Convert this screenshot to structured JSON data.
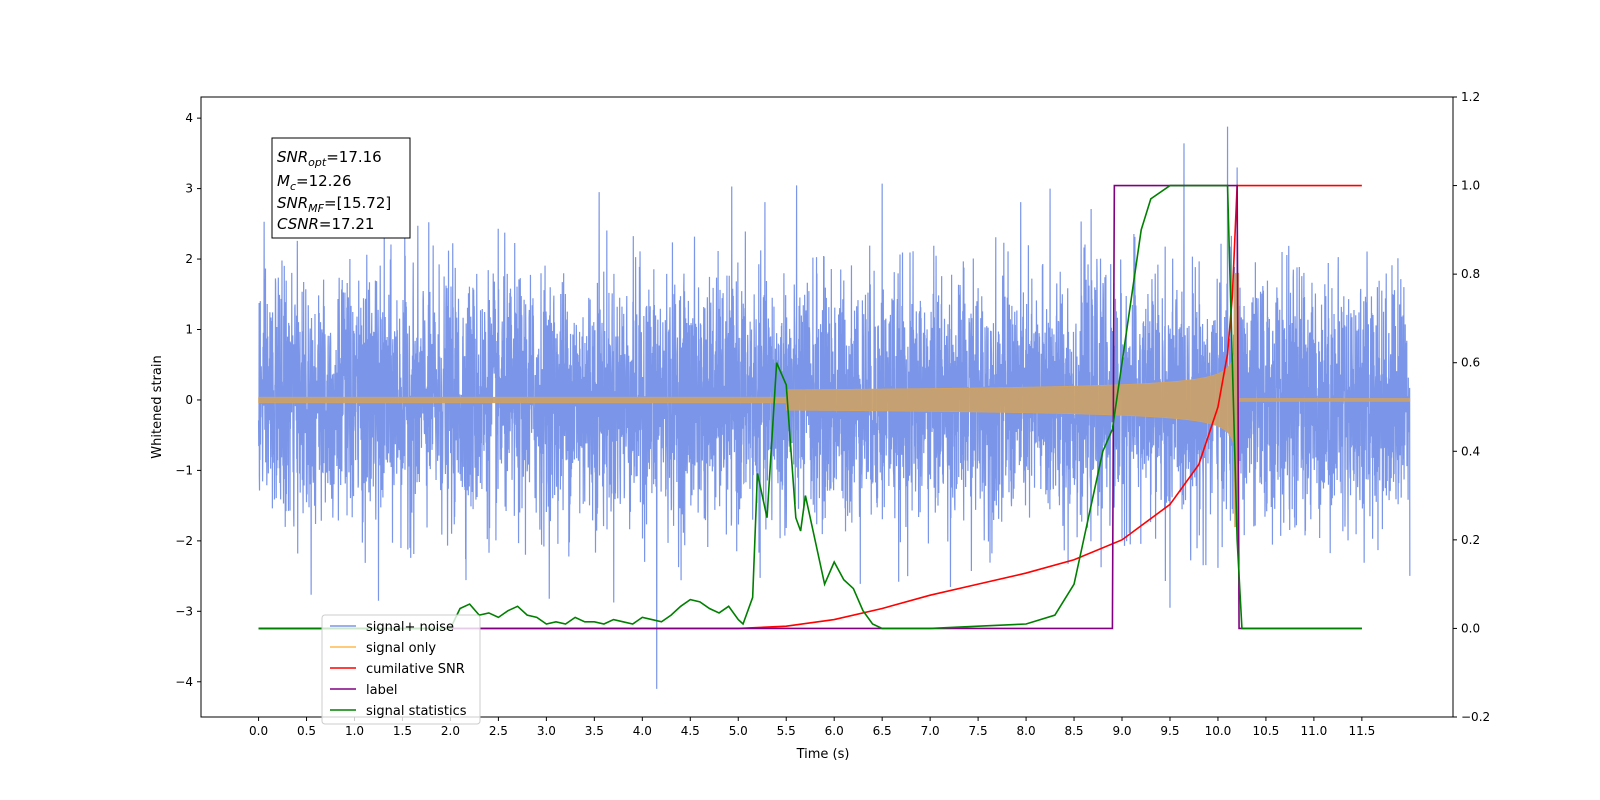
{
  "chart_data": {
    "type": "line",
    "xlabel": "Time (s)",
    "ylabel_left": "Whitened strain",
    "ylabel_right": "",
    "xlim": [
      -0.6,
      12.45
    ],
    "ylim_left": [
      -4.5,
      4.3
    ],
    "ylim_right": [
      -0.2,
      1.2
    ],
    "x_ticks": [
      0.0,
      0.5,
      1.0,
      1.5,
      2.0,
      2.5,
      3.0,
      3.5,
      4.0,
      4.5,
      5.0,
      5.5,
      6.0,
      6.5,
      7.0,
      7.5,
      8.0,
      8.5,
      9.0,
      9.5,
      10.0,
      10.5,
      11.0,
      11.5
    ],
    "x_tick_labels": [
      "0.0",
      "0.5",
      "1.0",
      "1.5",
      "2.0",
      "2.5",
      "3.0",
      "3.5",
      "4.0",
      "4.5",
      "5.0",
      "5.5",
      "6.0",
      "6.5",
      "7.0",
      "7.5",
      "8.0",
      "8.5",
      "9.0",
      "9.5",
      "10.0",
      "10.5",
      "11.0",
      "11.5"
    ],
    "y_left_ticks": [
      -4,
      -3,
      -2,
      -1,
      0,
      1,
      2,
      3,
      4
    ],
    "y_left_tick_labels": [
      "−4",
      "−3",
      "−2",
      "−1",
      "0",
      "1",
      "2",
      "3",
      "4"
    ],
    "y_right_ticks": [
      -0.2,
      0.0,
      0.2,
      0.4,
      0.6,
      0.8,
      1.0,
      1.2
    ],
    "y_right_tick_labels": [
      "−0.2",
      "0.0",
      "0.2",
      "0.4",
      "0.6",
      "0.8",
      "1.0",
      "1.2"
    ],
    "grid": false,
    "legend_position": "lower-left",
    "annotation": {
      "snr_opt": "=17.16",
      "mc": "=12.26",
      "snr_mf": "=[15.72]",
      "csnr": "=17.21"
    },
    "series": [
      {
        "name": "signal+ noise",
        "axis": "left",
        "color": "#7b96e8",
        "noise_sigma": 1.0,
        "x_range": [
          0.0,
          12.0
        ],
        "spikes": [
          [
            4.15,
            -4.1
          ],
          [
            10.1,
            3.88
          ],
          [
            10.2,
            3.3
          ],
          [
            1.25,
            -2.85
          ],
          [
            3.55,
            2.95
          ],
          [
            6.5,
            3.07
          ],
          [
            8.25,
            3.0
          ],
          [
            9.5,
            -2.95
          ]
        ]
      },
      {
        "name": "signal only",
        "axis": "left",
        "color": "#ffb84d",
        "envelope": {
          "t_merge": 10.2,
          "amp_at_merge": 1.1,
          "t_start": 5.5
        }
      },
      {
        "name": "cumilative SNR",
        "axis": "right",
        "color": "#ff0000",
        "x": [
          0.0,
          5.0,
          5.5,
          6.0,
          6.5,
          7.0,
          7.5,
          8.0,
          8.5,
          9.0,
          9.5,
          9.8,
          10.0,
          10.1,
          10.15,
          10.2,
          11.5
        ],
        "y": [
          0.0,
          0.0,
          0.005,
          0.02,
          0.045,
          0.075,
          0.1,
          0.125,
          0.155,
          0.2,
          0.28,
          0.37,
          0.5,
          0.62,
          0.75,
          1.0,
          1.0
        ]
      },
      {
        "name": "label",
        "axis": "right",
        "color": "#800080",
        "x": [
          0.0,
          8.9,
          8.92,
          10.2,
          10.22,
          11.5
        ],
        "y": [
          0.0,
          0.0,
          1.0,
          1.0,
          0.0,
          0.0
        ]
      },
      {
        "name": "signal statistics",
        "axis": "right",
        "color": "#008000",
        "x": [
          0.0,
          1.5,
          2.0,
          2.1,
          2.2,
          2.3,
          2.4,
          2.5,
          2.6,
          2.7,
          2.8,
          2.9,
          3.0,
          3.1,
          3.2,
          3.3,
          3.4,
          3.5,
          3.6,
          3.7,
          3.8,
          3.9,
          4.0,
          4.1,
          4.2,
          4.3,
          4.4,
          4.5,
          4.6,
          4.7,
          4.8,
          4.9,
          5.0,
          5.05,
          5.15,
          5.2,
          5.3,
          5.4,
          5.5,
          5.6,
          5.65,
          5.7,
          5.8,
          5.9,
          6.0,
          6.1,
          6.2,
          6.3,
          6.4,
          6.5,
          7.0,
          7.5,
          8.0,
          8.3,
          8.5,
          8.6,
          8.7,
          8.8,
          8.9,
          9.0,
          9.1,
          9.2,
          9.3,
          9.5,
          9.7,
          10.0,
          10.1,
          10.15,
          10.2,
          10.25,
          11.5
        ],
        "y": [
          0.0,
          0.0,
          0.0,
          0.045,
          0.055,
          0.03,
          0.035,
          0.025,
          0.04,
          0.05,
          0.03,
          0.025,
          0.01,
          0.015,
          0.01,
          0.025,
          0.015,
          0.015,
          0.01,
          0.02,
          0.015,
          0.01,
          0.025,
          0.02,
          0.015,
          0.03,
          0.05,
          0.065,
          0.06,
          0.045,
          0.035,
          0.05,
          0.02,
          0.01,
          0.07,
          0.35,
          0.25,
          0.6,
          0.55,
          0.25,
          0.22,
          0.3,
          0.2,
          0.1,
          0.15,
          0.11,
          0.09,
          0.04,
          0.01,
          0.0,
          0.0,
          0.005,
          0.01,
          0.03,
          0.1,
          0.2,
          0.3,
          0.4,
          0.45,
          0.6,
          0.75,
          0.9,
          0.97,
          1.0,
          1.0,
          1.0,
          1.0,
          0.6,
          0.2,
          0.0,
          0.0
        ]
      }
    ],
    "legend_entries": [
      "signal+ noise",
      "signal only",
      "cumilative SNR",
      "label",
      "signal statistics"
    ]
  }
}
